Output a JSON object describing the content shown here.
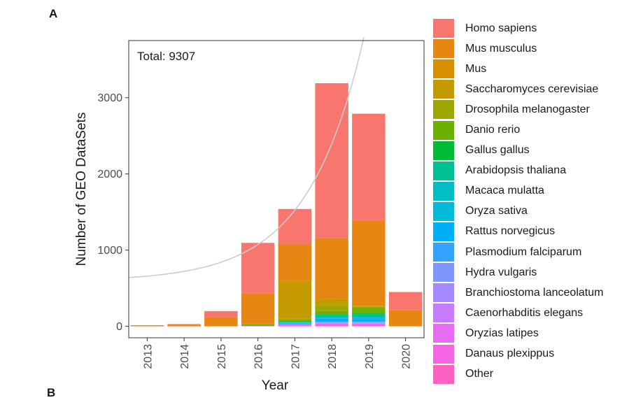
{
  "panel_label": "A",
  "next_panel_label": "B",
  "chart_data": {
    "type": "bar",
    "stacked": true,
    "annotation": "Total: 9307",
    "xlabel": "Year",
    "ylabel": "Number of GEO DataSets",
    "categories": [
      "2013",
      "2014",
      "2015",
      "2016",
      "2017",
      "2018",
      "2019",
      "2020"
    ],
    "yticks": [
      0,
      1000,
      2000,
      3000
    ],
    "ylim": [
      -150,
      3750
    ],
    "grid": false,
    "legend_position": "right",
    "series": [
      {
        "name": "Other",
        "color": "#FF61C3",
        "values": [
          0,
          0,
          0,
          0,
          10,
          15,
          15,
          0
        ]
      },
      {
        "name": "Danaus plexippus",
        "color": "#F564E3",
        "values": [
          0,
          0,
          0,
          0,
          5,
          10,
          10,
          0
        ]
      },
      {
        "name": "Oryzias latipes",
        "color": "#E76BF3",
        "values": [
          0,
          0,
          0,
          0,
          5,
          10,
          10,
          0
        ]
      },
      {
        "name": "Caenorhabditis elegans",
        "color": "#C77CFF",
        "values": [
          0,
          0,
          0,
          5,
          5,
          10,
          10,
          0
        ]
      },
      {
        "name": "Branchiostoma lanceolatum",
        "color": "#A58AFF",
        "values": [
          0,
          0,
          0,
          0,
          0,
          5,
          5,
          0
        ]
      },
      {
        "name": "Hydra vulgaris",
        "color": "#7F96FF",
        "values": [
          0,
          0,
          0,
          0,
          0,
          5,
          5,
          0
        ]
      },
      {
        "name": "Plasmodium falciparum",
        "color": "#35A2FF",
        "values": [
          0,
          0,
          0,
          0,
          5,
          15,
          10,
          0
        ]
      },
      {
        "name": "Rattus norvegicus",
        "color": "#00B0F6",
        "values": [
          0,
          0,
          0,
          5,
          10,
          30,
          30,
          0
        ]
      },
      {
        "name": "Oryza sativa",
        "color": "#00BCD8",
        "values": [
          0,
          0,
          0,
          0,
          5,
          15,
          20,
          0
        ]
      },
      {
        "name": "Macaca mulatta",
        "color": "#00BFC4",
        "values": [
          0,
          0,
          0,
          0,
          5,
          15,
          15,
          0
        ]
      },
      {
        "name": "Arabidopsis thaliana",
        "color": "#00C094",
        "values": [
          0,
          0,
          0,
          5,
          10,
          20,
          25,
          0
        ]
      },
      {
        "name": "Gallus gallus",
        "color": "#00BA38",
        "values": [
          0,
          0,
          0,
          0,
          5,
          10,
          15,
          0
        ]
      },
      {
        "name": "Danio rerio",
        "color": "#6BB100",
        "values": [
          0,
          0,
          0,
          5,
          15,
          40,
          70,
          0
        ]
      },
      {
        "name": "Drosophila melanogaster",
        "color": "#9DA700",
        "values": [
          0,
          0,
          0,
          5,
          20,
          80,
          20,
          0
        ]
      },
      {
        "name": "Saccharomyces cerevisiae",
        "color": "#C49A00",
        "values": [
          0,
          0,
          0,
          10,
          500,
          80,
          10,
          0
        ]
      },
      {
        "name": "Mus",
        "color": "#D89000",
        "values": [
          0,
          0,
          0,
          0,
          0,
          0,
          0,
          0
        ]
      },
      {
        "name": "Mus musculus",
        "color": "#E68613",
        "values": [
          5,
          20,
          120,
          400,
          480,
          800,
          1120,
          210
        ]
      },
      {
        "name": "Homo sapiens",
        "color": "#F8766D",
        "values": [
          10,
          10,
          80,
          660,
          460,
          2030,
          1400,
          240
        ]
      }
    ],
    "legend_order": [
      "Homo sapiens",
      "Mus musculus",
      "Mus",
      "Saccharomyces cerevisiae",
      "Drosophila melanogaster",
      "Danio rerio",
      "Gallus gallus",
      "Arabidopsis thaliana",
      "Macaca mulatta",
      "Oryza sativa",
      "Rattus norvegicus",
      "Plasmodium falciparum",
      "Hydra vulgaris",
      "Branchiostoma lanceolatum",
      "Caenorhabditis elegans",
      "Oryzias latipes",
      "Danaus plexippus",
      "Other"
    ],
    "trend_line_color": "#CCCCCC"
  }
}
